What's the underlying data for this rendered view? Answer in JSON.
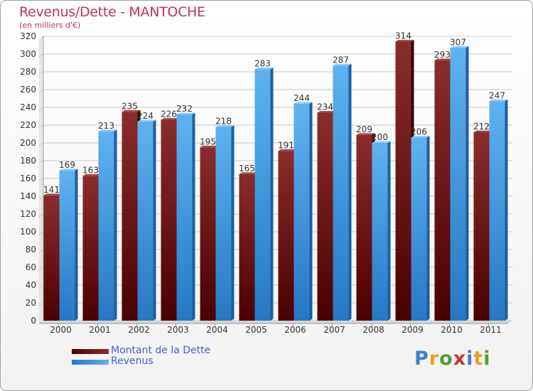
{
  "chart_data": {
    "type": "bar",
    "title": "Revenus/Dette - MANTOCHE",
    "subtitle": "(en milliers d'€)",
    "categories": [
      "2000",
      "2001",
      "2002",
      "2003",
      "2004",
      "2005",
      "2006",
      "2007",
      "2008",
      "2009",
      "2010",
      "2011"
    ],
    "series": [
      {
        "name": "Montant de la Dette",
        "values": [
          141,
          163,
          235,
          226,
          195,
          165,
          191,
          234,
          209,
          314,
          293,
          212
        ],
        "color": "#7a1a1a"
      },
      {
        "name": "Revenus",
        "values": [
          169,
          213,
          224,
          232,
          218,
          283,
          244,
          287,
          200,
          206,
          307,
          247
        ],
        "color": "#4aa3e6"
      }
    ],
    "ylim": [
      0,
      320
    ],
    "yticks": [
      0,
      20,
      40,
      60,
      80,
      100,
      120,
      140,
      160,
      180,
      200,
      220,
      240,
      260,
      280,
      300,
      320
    ],
    "grid": true,
    "legend_position": "bottom-left"
  },
  "brand": {
    "letters": [
      "P",
      "r",
      "o",
      "x",
      "i",
      "t",
      "i"
    ],
    "colors": [
      "#3a7fd6",
      "#e8a020",
      "#50a030",
      "#d03030",
      "#3a7fd6",
      "#e8a020",
      "#50a030"
    ]
  }
}
